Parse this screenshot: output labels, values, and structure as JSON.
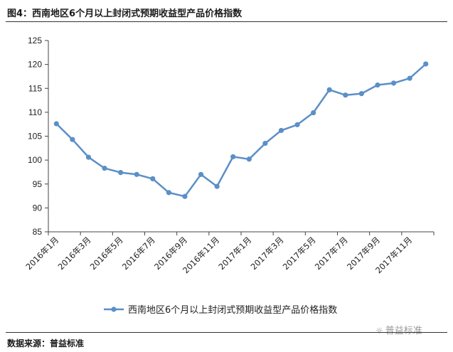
{
  "header": {
    "title": "图4：西南地区6个月以上封闭式预期收益型产品价格指数"
  },
  "footer": {
    "source": "数据来源：普益标准",
    "watermark": "普益标准"
  },
  "colors": {
    "series": "#5b8fc7",
    "axis": "#444444",
    "text": "#222222"
  },
  "chart_data": {
    "type": "line",
    "x": [
      "2016年1月",
      "2016年2月",
      "2016年3月",
      "2016年4月",
      "2016年5月",
      "2016年6月",
      "2016年7月",
      "2016年8月",
      "2016年9月",
      "2016年10月",
      "2016年11月",
      "2016年12月",
      "2017年1月",
      "2017年2月",
      "2017年3月",
      "2017年4月",
      "2017年5月",
      "2017年6月",
      "2017年7月",
      "2017年8月",
      "2017年9月",
      "2017年10月",
      "2017年11月",
      "2017年12月"
    ],
    "tick_labels": [
      "2016年1月",
      "2016年3月",
      "2016年5月",
      "2016年7月",
      "2016年9月",
      "2016年11月",
      "2017年1月",
      "2017年3月",
      "2017年5月",
      "2017年7月",
      "2017年9月",
      "2017年11月"
    ],
    "tick_indices": [
      0,
      2,
      4,
      6,
      8,
      10,
      12,
      14,
      16,
      18,
      20,
      22
    ],
    "series": [
      {
        "name": "西南地区6个月以上封闭式预期收益型产品价格指数",
        "values": [
          107.6,
          104.3,
          100.6,
          98.3,
          97.4,
          97.0,
          96.1,
          93.2,
          92.4,
          97.0,
          94.5,
          100.7,
          100.2,
          103.5,
          106.2,
          107.4,
          109.9,
          114.7,
          113.6,
          113.9,
          115.7,
          116.1,
          117.1,
          120.1
        ]
      }
    ],
    "yticks": [
      85,
      90,
      95,
      100,
      105,
      110,
      115,
      120,
      125
    ],
    "ylim": [
      85,
      125
    ],
    "grid": false,
    "legend": "bottom",
    "xlabel": "",
    "ylabel": ""
  }
}
